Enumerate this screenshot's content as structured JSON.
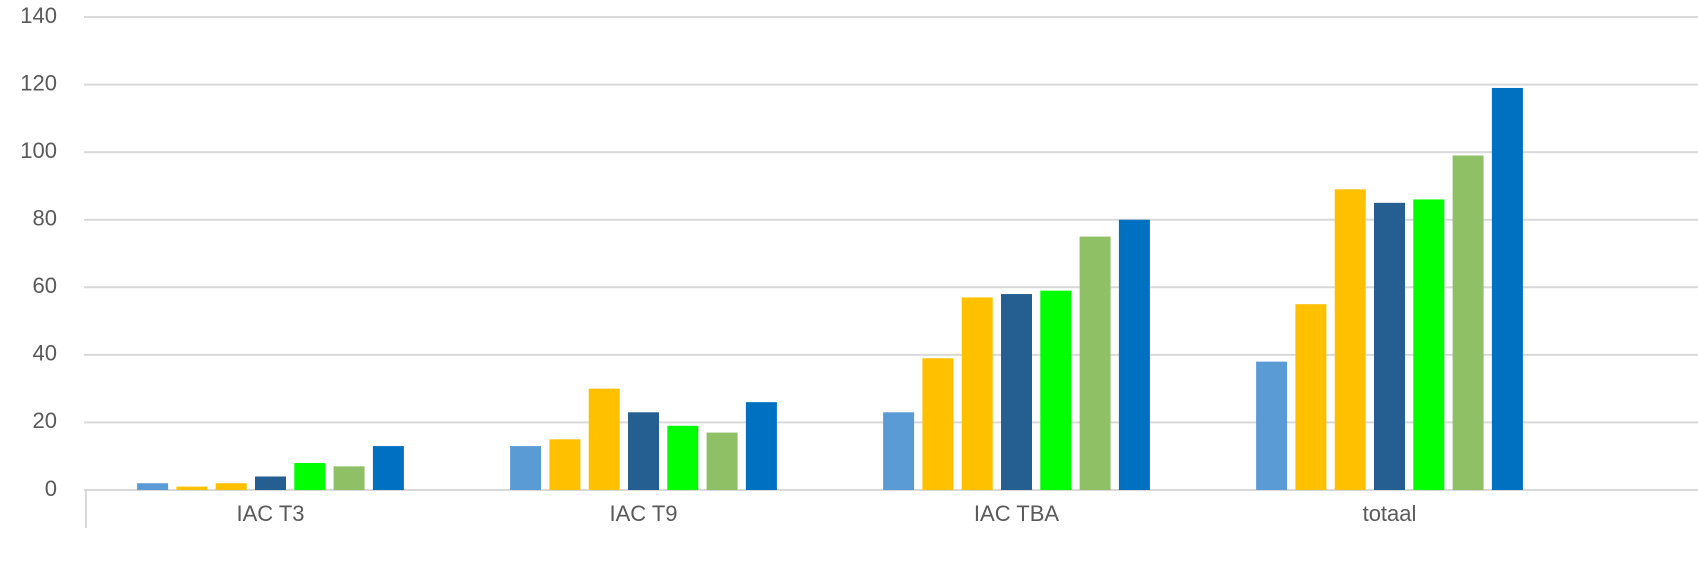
{
  "chart_data": {
    "type": "bar",
    "categories": [
      "IAC T3",
      "IAC T9",
      "IAC TBA",
      "totaal"
    ],
    "series": [
      {
        "color": "#5b9bd5",
        "values": [
          2,
          13,
          23,
          38
        ]
      },
      {
        "color": "#ffc000",
        "values": [
          1,
          15,
          39,
          55
        ]
      },
      {
        "color": "#ffc000",
        "values": [
          2,
          30,
          57,
          89
        ]
      },
      {
        "color": "#255e91",
        "values": [
          4,
          23,
          58,
          85
        ]
      },
      {
        "color": "#00ff00",
        "values": [
          8,
          19,
          59,
          86
        ]
      },
      {
        "color": "#8fc066",
        "values": [
          7,
          17,
          75,
          99
        ]
      },
      {
        "color": "#0070c0",
        "values": [
          13,
          26,
          80,
          119
        ]
      }
    ],
    "ylim": [
      0,
      140
    ],
    "yticks": [
      0,
      20,
      40,
      60,
      80,
      100,
      120,
      140
    ],
    "grid": true
  }
}
